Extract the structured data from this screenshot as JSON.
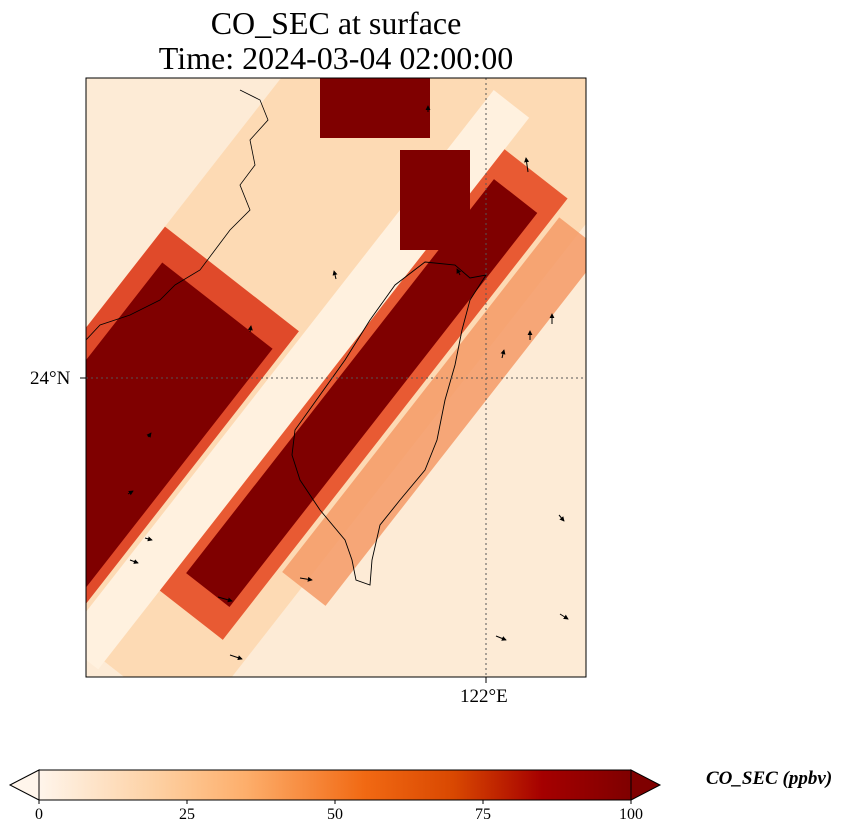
{
  "title": {
    "line1": "CO_SEC at surface",
    "line2": "Time: 2024-03-04 02:00:00"
  },
  "map": {
    "gridlines": {
      "lat_label": "24°N",
      "lon_label": "122°E",
      "style": "dotted"
    },
    "coastline": "Taiwan and southeast China coast",
    "wind_vectors": "black arrows"
  },
  "colorbar": {
    "label": "CO_SEC (ppbv)",
    "ticks": [
      "0",
      "25",
      "50",
      "75",
      "100"
    ],
    "min": 0,
    "max": 100,
    "colormap": [
      "#fff5eb",
      "#fdd0a2",
      "#fdae6b",
      "#f16913",
      "#d94801",
      "#a50000",
      "#7f0000"
    ],
    "extend": "both"
  }
}
